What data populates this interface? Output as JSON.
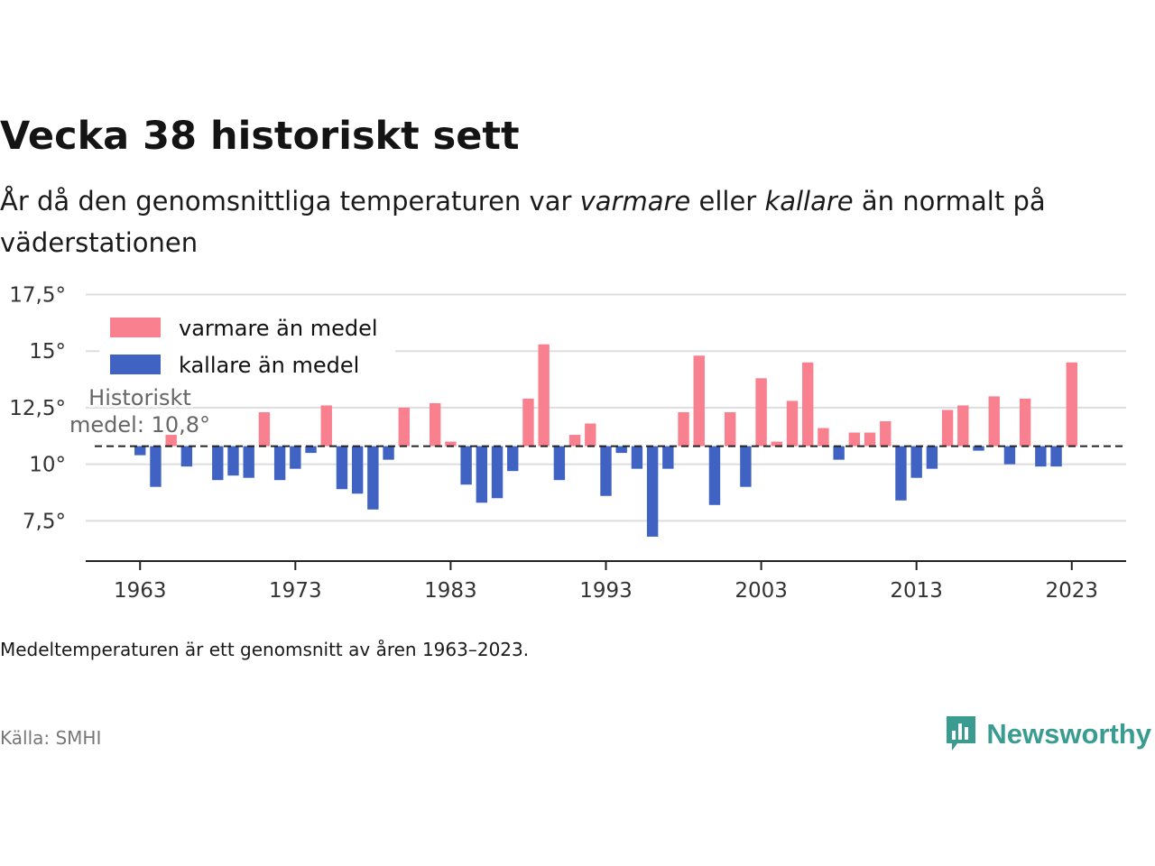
{
  "title": "Vecka 38 historiskt sett",
  "subtitle": {
    "part1": "År då den genomsnittliga temperaturen var ",
    "warm_word": "varmare",
    "part2": " eller ",
    "cold_word": "kallare",
    "part3": " än normalt på väderstationen"
  },
  "note": "Medeltemperaturen är ett genomsnitt av åren 1963–2023.",
  "source": "Källa: SMHI",
  "logo": {
    "text": "Newsworthy",
    "icon": "newsworthy-logo-icon"
  },
  "colors": {
    "warm": "#f9818f",
    "cold": "#4062c2",
    "grid": "#dddddd",
    "axis": "#222222",
    "brand": "#3a9c91"
  },
  "chart_data": {
    "type": "bar",
    "baseline": 10.8,
    "baseline_label_line1": "Historiskt",
    "baseline_label_line2": "medel: 10,8°",
    "ylim": [
      5.8,
      17.5
    ],
    "yticks": [
      7.5,
      10,
      12.5,
      15,
      17.5
    ],
    "ytick_labels": [
      "7,5°",
      "10°",
      "12,5°",
      "15°",
      "17,5°"
    ],
    "xlim": [
      1959.5,
      2026.5
    ],
    "xticks": [
      1963,
      1973,
      1983,
      1993,
      2003,
      2013,
      2023
    ],
    "xtick_labels": [
      "1963",
      "1973",
      "1983",
      "1993",
      "2003",
      "2013",
      "2023"
    ],
    "grid": true,
    "legend_position": "top-left",
    "series": [
      {
        "name": "varmare än medel",
        "color": "#f9818f"
      },
      {
        "name": "kallare än medel",
        "color": "#4062c2"
      }
    ],
    "x": [
      1963,
      1964,
      1965,
      1966,
      1967,
      1968,
      1969,
      1970,
      1971,
      1972,
      1973,
      1974,
      1975,
      1976,
      1977,
      1978,
      1979,
      1980,
      1981,
      1982,
      1983,
      1984,
      1985,
      1986,
      1987,
      1988,
      1989,
      1990,
      1991,
      1992,
      1993,
      1994,
      1995,
      1996,
      1997,
      1998,
      1999,
      2000,
      2001,
      2002,
      2003,
      2004,
      2005,
      2006,
      2007,
      2008,
      2009,
      2010,
      2011,
      2012,
      2013,
      2014,
      2015,
      2016,
      2017,
      2018,
      2019,
      2020,
      2021,
      2022,
      2023
    ],
    "values": [
      10.4,
      9.0,
      11.3,
      9.9,
      null,
      9.3,
      9.5,
      9.4,
      12.3,
      9.3,
      9.8,
      10.5,
      12.6,
      8.9,
      8.7,
      8.0,
      10.2,
      12.5,
      null,
      12.7,
      11.0,
      9.1,
      8.3,
      8.5,
      9.7,
      12.9,
      15.3,
      9.3,
      11.3,
      11.8,
      8.6,
      10.5,
      9.8,
      6.8,
      9.8,
      12.3,
      14.8,
      8.2,
      12.3,
      9.0,
      13.8,
      11.0,
      12.8,
      14.5,
      11.6,
      10.2,
      11.4,
      11.4,
      11.9,
      8.4,
      9.4,
      9.8,
      12.4,
      12.6,
      10.6,
      13.0,
      10.0,
      12.9,
      9.9,
      9.9,
      14.5
    ]
  }
}
